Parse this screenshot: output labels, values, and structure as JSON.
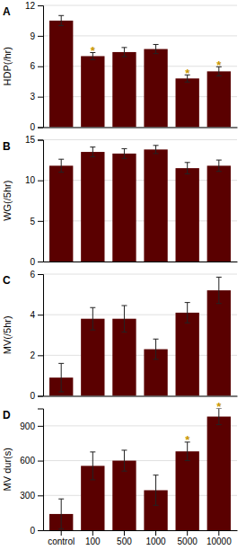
{
  "chart_data": [
    {
      "type": "bar",
      "title": "A",
      "ylabel": "HDP(/hr)",
      "categories": [
        "control",
        "100",
        "500",
        "1000",
        "5000",
        "10000"
      ],
      "values": [
        10.5,
        7.0,
        7.4,
        7.7,
        4.8,
        5.5
      ],
      "errors": [
        0.5,
        0.35,
        0.45,
        0.45,
        0.35,
        0.45
      ],
      "annotations": [
        {
          "text": "*",
          "category": "100"
        },
        {
          "text": "*",
          "category": "5000"
        },
        {
          "text": "*",
          "category": "10000"
        }
      ],
      "color": "#5a0000",
      "ylim": [
        0,
        12
      ],
      "yticks": [
        0,
        3,
        6,
        9,
        12
      ],
      "grid": true,
      "tick_labels": "y"
    },
    {
      "type": "bar",
      "title": "B",
      "ylabel": "WG(/5hr)",
      "categories": [
        "control",
        "100",
        "500",
        "1000",
        "5000",
        "10000"
      ],
      "values": [
        11.8,
        13.5,
        13.3,
        13.8,
        11.5,
        11.8
      ],
      "errors": [
        0.8,
        0.6,
        0.6,
        0.5,
        0.7,
        0.7
      ],
      "color": "#5a0000",
      "ylim": [
        0,
        15
      ],
      "yticks": [
        0,
        5,
        10,
        15
      ],
      "grid": true,
      "tick_labels": "y"
    },
    {
      "type": "bar",
      "title": "C",
      "ylabel": "MV(/5hr)",
      "categories": [
        "control",
        "100",
        "500",
        "1000",
        "5000",
        "10000"
      ],
      "values": [
        0.9,
        3.8,
        3.8,
        2.3,
        4.1,
        5.2
      ],
      "errors": [
        0.7,
        0.55,
        0.65,
        0.5,
        0.5,
        0.65
      ],
      "color": "#5a0000",
      "ylim": [
        0,
        6
      ],
      "yticks": [
        0,
        2,
        4,
        6
      ],
      "grid": true,
      "tick_labels": "y"
    },
    {
      "type": "bar",
      "title": "D",
      "ylabel": "MV dur(s)",
      "categories": [
        "control",
        "100",
        "500",
        "1000",
        "5000",
        "10000"
      ],
      "values": [
        140,
        555,
        600,
        345,
        680,
        980
      ],
      "errors": [
        130,
        120,
        90,
        130,
        80,
        70
      ],
      "annotations": [
        {
          "text": "*",
          "category": "5000"
        },
        {
          "text": "*",
          "category": "10000"
        }
      ],
      "color": "#5a0000",
      "ylim": [
        0,
        1050
      ],
      "yticks": [
        0,
        300,
        600,
        900
      ],
      "grid": true
    }
  ]
}
